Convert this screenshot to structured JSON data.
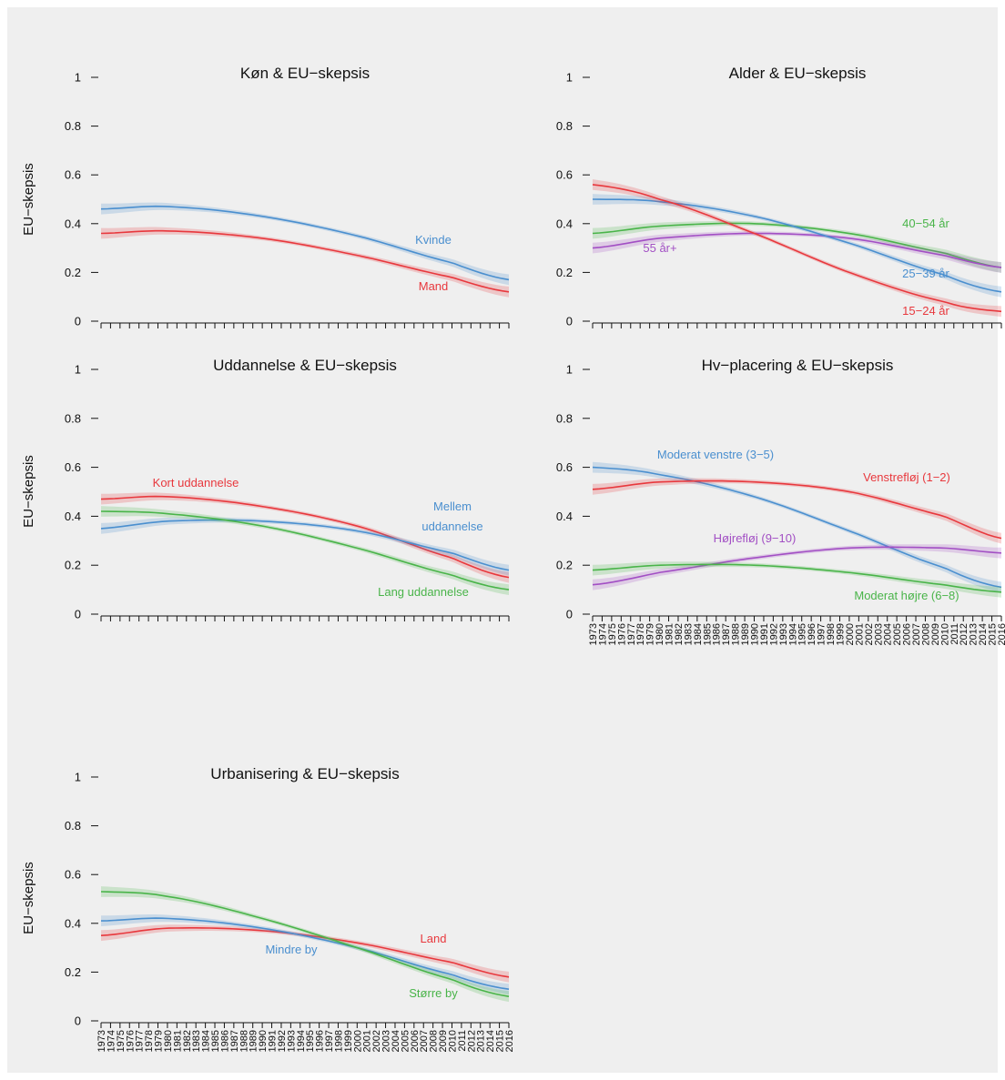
{
  "colors": {
    "background": "#efefef",
    "red": "#e8383d",
    "blue": "#4a8fcf",
    "green": "#49b449",
    "purple": "#a24fc4"
  },
  "chart_data": [
    {
      "type": "line",
      "title": "Køn & EU−skepsis",
      "ylabel": "EU−skepsis",
      "ylim": [
        0,
        1
      ],
      "yticks": [
        "0",
        "0.2",
        "0.4",
        "0.6",
        "0.8",
        "1"
      ],
      "xlim": [
        1973,
        2016
      ],
      "show_x_labels": false,
      "series": [
        {
          "name": "Kvinde",
          "color": "#4a8fcf",
          "x": [
            1973,
            1980,
            1990,
            2000,
            2010,
            2016
          ],
          "y": [
            0.46,
            0.47,
            0.43,
            0.35,
            0.24,
            0.17
          ]
        },
        {
          "name": "Mand",
          "color": "#e8383d",
          "x": [
            1973,
            1980,
            1990,
            2000,
            2010,
            2016
          ],
          "y": [
            0.36,
            0.37,
            0.34,
            0.27,
            0.18,
            0.12
          ]
        }
      ]
    },
    {
      "type": "line",
      "title": "Alder & EU−skepsis",
      "ylabel": "",
      "ylim": [
        0,
        1
      ],
      "yticks": [
        "0",
        "0.2",
        "0.4",
        "0.6",
        "0.8",
        "1"
      ],
      "xlim": [
        1973,
        2016
      ],
      "show_x_labels": false,
      "series": [
        {
          "name": "40−54 år",
          "color": "#49b449",
          "x": [
            1973,
            1980,
            1990,
            2000,
            2010,
            2016
          ],
          "y": [
            0.36,
            0.39,
            0.4,
            0.36,
            0.28,
            0.22
          ]
        },
        {
          "name": "55 år+",
          "color": "#a24fc4",
          "x": [
            1973,
            1980,
            1990,
            2000,
            2010,
            2016
          ],
          "y": [
            0.3,
            0.34,
            0.36,
            0.34,
            0.27,
            0.22
          ]
        },
        {
          "name": "25−39 år",
          "color": "#4a8fcf",
          "x": [
            1973,
            1980,
            1990,
            2000,
            2010,
            2016
          ],
          "y": [
            0.5,
            0.49,
            0.43,
            0.32,
            0.19,
            0.12
          ]
        },
        {
          "name": "15−24 år",
          "color": "#e8383d",
          "x": [
            1973,
            1980,
            1990,
            2000,
            2010,
            2016
          ],
          "y": [
            0.56,
            0.5,
            0.36,
            0.2,
            0.08,
            0.04
          ]
        }
      ]
    },
    {
      "type": "line",
      "title": "Uddannelse & EU−skepsis",
      "ylabel": "EU−skepsis",
      "ylim": [
        0,
        1
      ],
      "yticks": [
        "0",
        "0.2",
        "0.4",
        "0.6",
        "0.8",
        "1"
      ],
      "xlim": [
        1973,
        2016
      ],
      "show_x_labels": false,
      "series": [
        {
          "name": "Kort uddannelse",
          "color": "#e8383d",
          "x": [
            1973,
            1980,
            1990,
            2000,
            2010,
            2016
          ],
          "y": [
            0.47,
            0.48,
            0.44,
            0.36,
            0.23,
            0.15
          ]
        },
        {
          "name": "Mellem uddannelse",
          "label_lines": [
            "Mellem",
            "uddannelse"
          ],
          "color": "#4a8fcf",
          "x": [
            1973,
            1980,
            1990,
            2000,
            2010,
            2016
          ],
          "y": [
            0.35,
            0.38,
            0.38,
            0.34,
            0.25,
            0.18
          ]
        },
        {
          "name": "Lang uddannelse",
          "color": "#49b449",
          "x": [
            1973,
            1980,
            1990,
            2000,
            2010,
            2016
          ],
          "y": [
            0.42,
            0.41,
            0.36,
            0.27,
            0.16,
            0.1
          ]
        }
      ]
    },
    {
      "type": "line",
      "title": "Hv−placering & EU−skepsis",
      "ylabel": "",
      "ylim": [
        0,
        1
      ],
      "yticks": [
        "0",
        "0.2",
        "0.4",
        "0.6",
        "0.8",
        "1"
      ],
      "xlim": [
        1973,
        2016
      ],
      "show_x_labels": true,
      "series": [
        {
          "name": "Moderat venstre (3−5)",
          "color": "#4a8fcf",
          "x": [
            1973,
            1980,
            1990,
            2000,
            2010,
            2016
          ],
          "y": [
            0.6,
            0.57,
            0.48,
            0.34,
            0.19,
            0.11
          ]
        },
        {
          "name": "Venstrefløj (1−2)",
          "color": "#e8383d",
          "x": [
            1973,
            1980,
            1990,
            2000,
            2010,
            2016
          ],
          "y": [
            0.51,
            0.54,
            0.54,
            0.5,
            0.4,
            0.31
          ]
        },
        {
          "name": "Højrefløj (9−10)",
          "color": "#a24fc4",
          "x": [
            1973,
            1980,
            1990,
            2000,
            2010,
            2016
          ],
          "y": [
            0.12,
            0.17,
            0.23,
            0.27,
            0.27,
            0.25
          ]
        },
        {
          "name": "Moderat højre (6−8)",
          "color": "#49b449",
          "x": [
            1973,
            1980,
            1990,
            2000,
            2010,
            2016
          ],
          "y": [
            0.18,
            0.2,
            0.2,
            0.17,
            0.12,
            0.09
          ]
        }
      ]
    },
    {
      "type": "line",
      "title": "Urbanisering & EU−skepsis",
      "ylabel": "EU−skepsis",
      "ylim": [
        0,
        1
      ],
      "yticks": [
        "0",
        "0.2",
        "0.4",
        "0.6",
        "0.8",
        "1"
      ],
      "xlim": [
        1973,
        2016
      ],
      "show_x_labels": true,
      "series": [
        {
          "name": "Land",
          "color": "#e8383d",
          "x": [
            1973,
            1980,
            1990,
            2000,
            2010,
            2016
          ],
          "y": [
            0.35,
            0.38,
            0.37,
            0.32,
            0.24,
            0.18
          ]
        },
        {
          "name": "Mindre by",
          "color": "#4a8fcf",
          "x": [
            1973,
            1980,
            1990,
            2000,
            2010,
            2016
          ],
          "y": [
            0.41,
            0.42,
            0.38,
            0.3,
            0.19,
            0.13
          ]
        },
        {
          "name": "Større by",
          "color": "#49b449",
          "x": [
            1973,
            1980,
            1990,
            2000,
            2010,
            2016
          ],
          "y": [
            0.53,
            0.51,
            0.42,
            0.3,
            0.17,
            0.1
          ]
        }
      ]
    }
  ]
}
